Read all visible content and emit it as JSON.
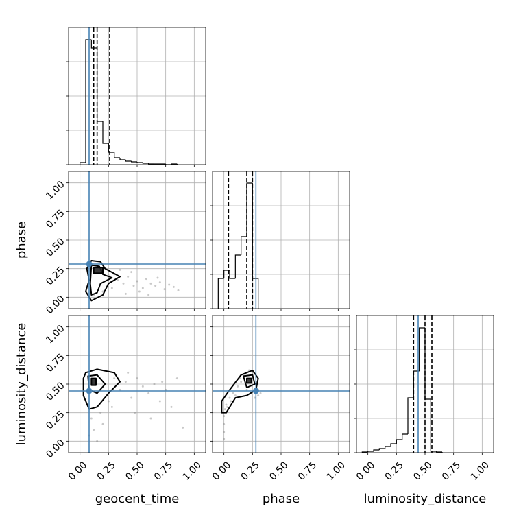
{
  "chart_data": [
    {
      "type": "histogram",
      "row": 0,
      "col": 0,
      "xlim": [
        -0.1,
        1.1
      ],
      "xticks": [
        0,
        0.25,
        0.5,
        0.75,
        1
      ],
      "ylim": [
        0,
        200
      ],
      "yticks": [
        0,
        50,
        100,
        150
      ],
      "grid": true,
      "color": "#000000",
      "bins": [
        0,
        0.05,
        0.1,
        0.15,
        0.2,
        0.25,
        0.3,
        0.35,
        0.4,
        0.45,
        0.5,
        0.55,
        0.6,
        0.65,
        0.7,
        0.75,
        0.8,
        0.85
      ],
      "counts": [
        3,
        182,
        170,
        63,
        31,
        18,
        10,
        7,
        5,
        4,
        3,
        2,
        1,
        1,
        1,
        0,
        1
      ],
      "quantiles": [
        0.12,
        0.15,
        0.26
      ],
      "truth": 0.08,
      "truth_color": "#4682b4"
    },
    {
      "type": "scatter",
      "row": 1,
      "col": 0,
      "xlim": [
        -0.1,
        1.1
      ],
      "xticks": [
        0,
        0.25,
        0.5,
        0.75,
        1
      ],
      "ylim": [
        -0.1,
        1.1
      ],
      "ylabel": "phase",
      "yticks": [
        {
          "value": 0,
          "label": "0.00"
        },
        {
          "value": 0.25,
          "label": "0.25"
        },
        {
          "value": 0.5,
          "label": "0.50"
        },
        {
          "value": 0.75,
          "label": "0.75"
        },
        {
          "value": 1,
          "label": "1.00"
        }
      ],
      "grid": true,
      "color": "#888888",
      "x": [
        0.12,
        0.2,
        0.28,
        0.33,
        0.38,
        0.42,
        0.47,
        0.5,
        0.55,
        0.58,
        0.62,
        0.66,
        0.7,
        0.74,
        0.78,
        0.82,
        0.86,
        0.3,
        0.4,
        0.45,
        0.52,
        0.6,
        0.35,
        0.25,
        0.68
      ],
      "y": [
        0.02,
        0.05,
        0.08,
        0.15,
        0.12,
        0.18,
        0.1,
        0.14,
        0.08,
        0.16,
        0.12,
        0.1,
        0.13,
        0.07,
        0.11,
        0.09,
        0.06,
        0.2,
        0.03,
        0.22,
        0.05,
        0.02,
        0.24,
        0.19,
        0.17
      ],
      "contours": [
        {
          "x": [
            0.1,
            0.18,
            0.22,
            0.35,
            0.25,
            0.2,
            0.1,
            0.05,
            0.08,
            0.06
          ],
          "y": [
            0.32,
            0.31,
            0.25,
            0.18,
            0.12,
            0.02,
            -0.03,
            0.05,
            0.15,
            0.25
          ]
        },
        {
          "x": [
            0.1,
            0.17,
            0.2,
            0.28,
            0.18,
            0.15,
            0.1,
            0.09
          ],
          "y": [
            0.28,
            0.27,
            0.2,
            0.17,
            0.12,
            0.04,
            0.02,
            0.12
          ]
        },
        {
          "x": [
            0.12,
            0.2,
            0.2,
            0.12
          ],
          "y": [
            0.26,
            0.26,
            0.21,
            0.21
          ],
          "fill": "#222222"
        }
      ],
      "truth_x": 0.08,
      "truth_y": 0.29,
      "truth_color": "#4682b4"
    },
    {
      "type": "histogram",
      "row": 1,
      "col": 1,
      "xlim": [
        -0.1,
        1.1
      ],
      "xticks": [
        0,
        0.25,
        0.5,
        0.75,
        1
      ],
      "ylim": [
        0,
        200
      ],
      "yticks": [
        0,
        50,
        100,
        150
      ],
      "grid": true,
      "color": "#000000",
      "bins": [
        -0.05,
        0,
        0.05,
        0.1,
        0.15,
        0.2,
        0.25,
        0.3
      ],
      "counts": [
        44,
        56,
        44,
        78,
        105,
        183,
        44
      ],
      "quantiles": [
        0.04,
        0.2,
        0.25
      ],
      "truth": 0.28,
      "truth_color": "#4682b4"
    },
    {
      "type": "scatter",
      "row": 2,
      "col": 0,
      "xlim": [
        -0.1,
        1.1
      ],
      "xlabel": "geocent_time",
      "xticks": [
        {
          "value": 0,
          "label": "0.00"
        },
        {
          "value": 0.25,
          "label": "0.25"
        },
        {
          "value": 0.5,
          "label": "0.50"
        },
        {
          "value": 0.75,
          "label": "0.75"
        },
        {
          "value": 1,
          "label": "1.00"
        }
      ],
      "ylim": [
        -0.1,
        1.1
      ],
      "ylabel": "luminosity_distance",
      "yticks": [
        {
          "value": 0,
          "label": "0.00"
        },
        {
          "value": 0.25,
          "label": "0.25"
        },
        {
          "value": 0.5,
          "label": "0.50"
        },
        {
          "value": 0.75,
          "label": "0.75"
        },
        {
          "value": 1,
          "label": "1.00"
        }
      ],
      "grid": true,
      "color": "#888888",
      "x": [
        0.08,
        0.1,
        0.12,
        0.2,
        0.28,
        0.35,
        0.4,
        0.45,
        0.5,
        0.55,
        0.6,
        0.65,
        0.7,
        0.75,
        0.8,
        0.85,
        0.3,
        0.25,
        0.15,
        0.42,
        0.48,
        0.62,
        0.72,
        0.18,
        0.9
      ],
      "y": [
        0.05,
        0.2,
        0.1,
        0.15,
        0.3,
        0.45,
        0.52,
        0.38,
        0.55,
        0.48,
        0.42,
        0.5,
        0.35,
        0.45,
        0.3,
        0.55,
        0.55,
        0.35,
        0.0,
        0.6,
        0.25,
        0.2,
        0.52,
        0.25,
        0.12
      ],
      "contours": [
        {
          "x": [
            0.05,
            0.15,
            0.3,
            0.35,
            0.25,
            0.15,
            0.08,
            0.03,
            0.03
          ],
          "y": [
            0.6,
            0.63,
            0.6,
            0.52,
            0.42,
            0.3,
            0.28,
            0.4,
            0.55
          ]
        },
        {
          "x": [
            0.07,
            0.15,
            0.22,
            0.15,
            0.08
          ],
          "y": [
            0.57,
            0.58,
            0.5,
            0.42,
            0.45
          ]
        },
        {
          "x": [
            0.1,
            0.14,
            0.14,
            0.1
          ],
          "y": [
            0.55,
            0.55,
            0.49,
            0.49
          ],
          "fill": "#222222"
        }
      ],
      "truth_x": 0.08,
      "truth_y": 0.44,
      "truth_color": "#4682b4"
    },
    {
      "type": "scatter",
      "row": 2,
      "col": 1,
      "xlim": [
        -0.1,
        1.1
      ],
      "xlabel": "phase",
      "xticks": [
        {
          "value": 0,
          "label": "0.00"
        },
        {
          "value": 0.25,
          "label": "0.25"
        },
        {
          "value": 0.5,
          "label": "0.50"
        },
        {
          "value": 0.75,
          "label": "0.75"
        },
        {
          "value": 1,
          "label": "1.00"
        }
      ],
      "ylim": [
        -0.1,
        1.1
      ],
      "yticks": [
        0,
        0.25,
        0.5,
        0.75,
        1
      ],
      "grid": true,
      "color": "#888888",
      "x": [
        0.0,
        0.0,
        0.0,
        0.0,
        0.01,
        0.02,
        0.05,
        0.08,
        0.12,
        0.15,
        0.18,
        0.22,
        0.25,
        0.28,
        0.3,
        0.32,
        0.1,
        0.2,
        0.27,
        0.3,
        0.03,
        0.06,
        0.14,
        0.24,
        0.29
      ],
      "y": [
        0.02,
        0.08,
        0.15,
        0.22,
        0.28,
        0.32,
        0.38,
        0.42,
        0.48,
        0.52,
        0.58,
        0.62,
        0.6,
        0.5,
        0.45,
        0.42,
        0.4,
        0.45,
        0.38,
        0.4,
        0.3,
        0.35,
        0.55,
        0.42,
        0.52
      ],
      "contours": [
        {
          "x": [
            -0.02,
            0.05,
            0.15,
            0.25,
            0.3,
            0.28,
            0.2,
            0.1,
            0.02,
            -0.02
          ],
          "y": [
            0.35,
            0.45,
            0.58,
            0.62,
            0.55,
            0.45,
            0.4,
            0.38,
            0.25,
            0.25
          ]
        },
        {
          "x": [
            0.17,
            0.25,
            0.27,
            0.2
          ],
          "y": [
            0.57,
            0.58,
            0.5,
            0.47
          ]
        },
        {
          "x": [
            0.2,
            0.24,
            0.24,
            0.2
          ],
          "y": [
            0.55,
            0.55,
            0.51,
            0.51
          ],
          "fill": "#222222"
        }
      ],
      "truth_x": 0.28,
      "truth_y": 0.44,
      "truth_color": "#4682b4"
    },
    {
      "type": "histogram",
      "row": 2,
      "col": 2,
      "xlim": [
        -0.1,
        1.1
      ],
      "xlabel": "luminosity_distance",
      "xticks": [
        {
          "value": 0,
          "label": "0.00"
        },
        {
          "value": 0.25,
          "label": "0.25"
        },
        {
          "value": 0.5,
          "label": "0.50"
        },
        {
          "value": 0.75,
          "label": "0.75"
        },
        {
          "value": 1,
          "label": "1.00"
        }
      ],
      "ylim": [
        0,
        200
      ],
      "yticks": [
        0,
        50,
        100,
        150
      ],
      "grid": true,
      "color": "#000000",
      "bins": [
        -0.05,
        0,
        0.05,
        0.1,
        0.15,
        0.2,
        0.25,
        0.3,
        0.35,
        0.4,
        0.45,
        0.5,
        0.55,
        0.6,
        0.65
      ],
      "counts": [
        1,
        2,
        4,
        6,
        9,
        13,
        19,
        27,
        80,
        119,
        182,
        78,
        2,
        1
      ],
      "quantiles": [
        0.4,
        0.5,
        0.56
      ],
      "truth": 0.44,
      "truth_color": "#4682b4"
    }
  ]
}
